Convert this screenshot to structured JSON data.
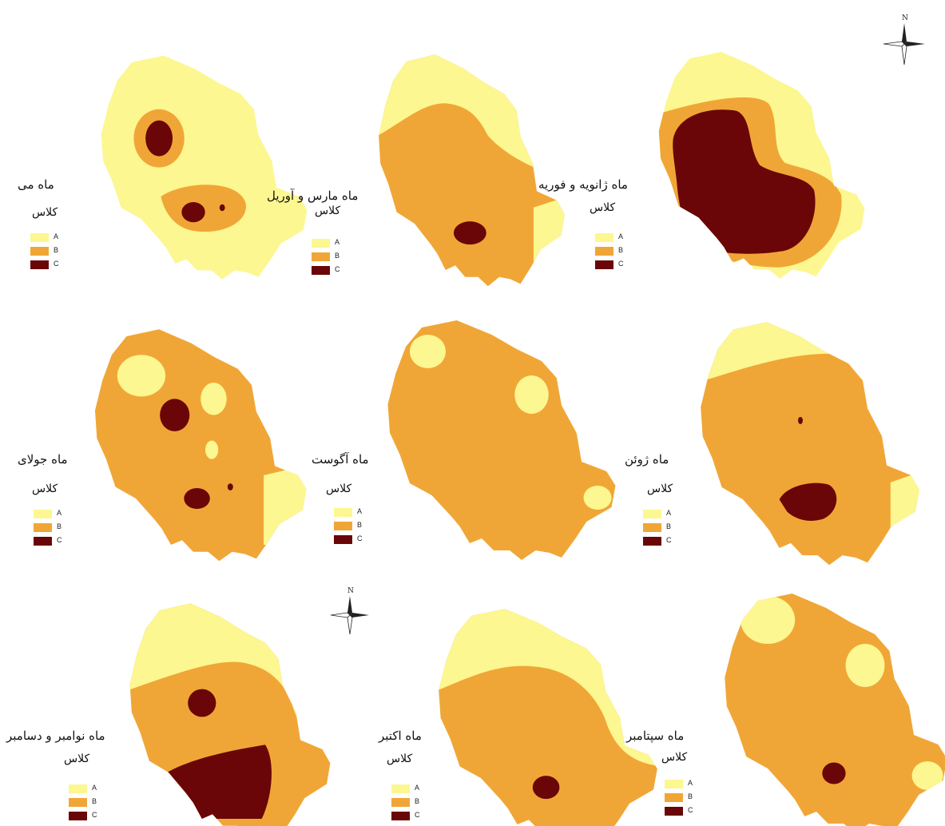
{
  "colors": {
    "A": "#fcf790",
    "B": "#f0a636",
    "C": "#6a0607",
    "background": "#ffffff"
  },
  "legend": {
    "title": "کلاس",
    "classes": [
      "A",
      "B",
      "C"
    ]
  },
  "north_arrow_label": "N",
  "panels": [
    {
      "id": "jan-feb",
      "title": "ماه ژانویه و فوریه"
    },
    {
      "id": "mar-apr",
      "title": "ماه مارس و آوریل"
    },
    {
      "id": "may",
      "title": "ماه می"
    },
    {
      "id": "jun",
      "title": "ماه ژوئن"
    },
    {
      "id": "aug",
      "title": "ماه آگوست"
    },
    {
      "id": "jul",
      "title": "ماه جولای"
    },
    {
      "id": "sep",
      "title": "ماه سپتامبر"
    },
    {
      "id": "oct",
      "title": "ماه اکتبر"
    },
    {
      "id": "nov-dec",
      "title": "ماه نوامبر و دسامبر"
    }
  ]
}
